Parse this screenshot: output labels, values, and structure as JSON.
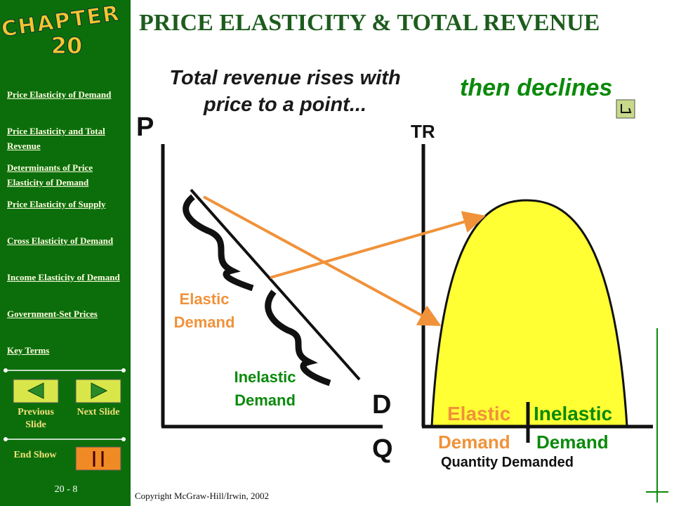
{
  "badge": {
    "word": "CHAPTER",
    "number": "20"
  },
  "sidebar": {
    "links": [
      "Price Elasticity of Demand",
      "Price Elasticity and Total Revenue",
      "Determinants of Price Elasticity of Demand",
      "Price Elasticity of Supply",
      "Cross Elasticity of Demand",
      "Income Elasticity of Demand",
      "Government-Set Prices",
      "Key Terms"
    ],
    "previous": "Previous Slide",
    "next": "Next Slide",
    "end": "End Show",
    "slide_number": "20 - 8"
  },
  "header": {
    "title": "PRICE ELASTICITY & TOTAL REVENUE"
  },
  "slide": {
    "rises_note": "Total revenue rises with price to a point...",
    "declines_note": "then declines",
    "left_axis_y": "P",
    "left_curve": "D",
    "left_axis_x": "Q",
    "left_elastic": "Elastic Demand",
    "left_inelastic": "Inelastic Demand",
    "right_axis_y": "TR",
    "right_elastic_1": "Elastic",
    "right_elastic_2": "Demand",
    "right_inelastic_1": "Inelastic",
    "right_inelastic_2": "Demand",
    "right_axis_x": "Quantity Demanded"
  },
  "footer": {
    "copyright": "Copyright McGraw-Hill/Irwin, 2002"
  }
}
